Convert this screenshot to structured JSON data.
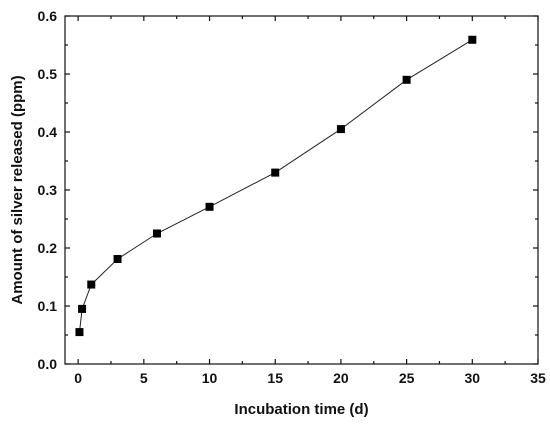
{
  "chart_data": {
    "type": "line",
    "title": "",
    "xlabel": "Incubation time (d)",
    "ylabel": "Amount of silver released (ppm)",
    "xlim": [
      -1,
      35
    ],
    "ylim": [
      0.0,
      0.6
    ],
    "xticks": [
      0,
      5,
      10,
      15,
      20,
      25,
      30,
      35
    ],
    "xtick_labels": [
      "0",
      "5",
      "10",
      "15",
      "20",
      "25",
      "30",
      "35"
    ],
    "yticks": [
      0.0,
      0.1,
      0.2,
      0.3,
      0.4,
      0.5,
      0.6
    ],
    "ytick_labels": [
      "0.0",
      "0.1",
      "0.2",
      "0.3",
      "0.4",
      "0.5",
      "0.6"
    ],
    "grid": false,
    "legend": "none",
    "series": [
      {
        "marker": "square",
        "color": "#000000",
        "x": [
          0.1,
          0.3,
          1,
          3,
          6,
          10,
          15,
          20,
          25,
          30
        ],
        "y": [
          0.055,
          0.095,
          0.137,
          0.181,
          0.225,
          0.271,
          0.33,
          0.405,
          0.49,
          0.559
        ]
      }
    ]
  }
}
